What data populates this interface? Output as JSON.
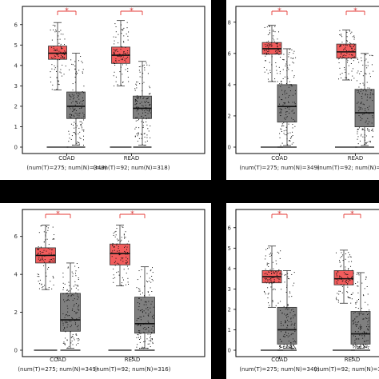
{
  "colors": {
    "tumor": "#f25c5c",
    "normal": "#7f7f7f",
    "sig": "#e53935",
    "frame": "#000000",
    "points": "#111111"
  },
  "chart_data": [
    {
      "type": "box",
      "ylim": [
        0,
        6.5
      ],
      "yticks": [
        0,
        1,
        2,
        3,
        4,
        5,
        6
      ],
      "significance_mark": "*",
      "groups": [
        {
          "name": "COAD",
          "sublabel": "(num(T)=275; num(N)=349)",
          "tumor": {
            "min": 2.8,
            "q1": 4.3,
            "median": 4.6,
            "q3": 4.95,
            "max": 6.1
          },
          "normal": {
            "min": 0.1,
            "q1": 1.4,
            "median": 2.0,
            "q3": 2.7,
            "max": 4.6
          }
        },
        {
          "name": "READ",
          "sublabel": "(num(T)=92; num(N)=318)",
          "tumor": {
            "min": 3.0,
            "q1": 4.1,
            "median": 4.5,
            "q3": 4.9,
            "max": 6.2
          },
          "normal": {
            "min": 0.1,
            "q1": 1.4,
            "median": 1.9,
            "q3": 2.5,
            "max": 4.2
          }
        }
      ]
    },
    {
      "type": "box",
      "ylim": [
        0,
        8.5
      ],
      "yticks": [
        0,
        2,
        4,
        6,
        8
      ],
      "significance_mark": "*",
      "groups": [
        {
          "name": "COAD",
          "sublabel": "(num(T)=275; num(N)=349)",
          "tumor": {
            "min": 4.2,
            "q1": 5.95,
            "median": 6.3,
            "q3": 6.7,
            "max": 7.8
          },
          "normal": {
            "min": 0.1,
            "q1": 1.6,
            "median": 2.6,
            "q3": 4.0,
            "max": 6.3
          }
        },
        {
          "name": "READ",
          "sublabel": "(num(T)=92; num(N)=318)",
          "tumor": {
            "min": 4.3,
            "q1": 5.7,
            "median": 6.1,
            "q3": 6.6,
            "max": 7.5
          },
          "normal": {
            "min": 0.1,
            "q1": 1.3,
            "median": 2.2,
            "q3": 3.7,
            "max": 6.0
          }
        }
      ]
    },
    {
      "type": "box",
      "ylim": [
        0,
        7
      ],
      "yticks": [
        0,
        2,
        4,
        6
      ],
      "significance_mark": "*",
      "groups": [
        {
          "name": "COAD",
          "sublabel": "(num(T)=275; num(N)=349)",
          "tumor": {
            "min": 3.2,
            "q1": 4.6,
            "median": 5.0,
            "q3": 5.4,
            "max": 6.6
          },
          "normal": {
            "min": 0.1,
            "q1": 1.0,
            "median": 1.6,
            "q3": 3.0,
            "max": 4.6
          }
        },
        {
          "name": "READ",
          "sublabel": "(num(T)=92; num(N)=316)",
          "tumor": {
            "min": 3.4,
            "q1": 4.5,
            "median": 5.1,
            "q3": 5.6,
            "max": 6.6
          },
          "normal": {
            "min": 0.1,
            "q1": 0.9,
            "median": 1.4,
            "q3": 2.8,
            "max": 4.4
          }
        }
      ]
    },
    {
      "type": "box",
      "ylim": [
        0,
        6.5
      ],
      "yticks": [
        0,
        1,
        2,
        3,
        4,
        5,
        6
      ],
      "significance_mark": "*",
      "groups": [
        {
          "name": "COAD",
          "sublabel": "(num(T)=275; num(N)=349)",
          "tumor": {
            "min": 2.1,
            "q1": 3.3,
            "median": 3.6,
            "q3": 3.9,
            "max": 5.1
          },
          "normal": {
            "min": 0.1,
            "q1": 0.3,
            "median": 1.0,
            "q3": 2.1,
            "max": 3.9
          }
        },
        {
          "name": "READ",
          "sublabel": "(num(T)=92; num(N)=318)",
          "tumor": {
            "min": 2.3,
            "q1": 3.2,
            "median": 3.5,
            "q3": 3.9,
            "max": 4.9
          },
          "normal": {
            "min": 0.1,
            "q1": 0.3,
            "median": 0.8,
            "q3": 1.9,
            "max": 3.8
          }
        }
      ]
    }
  ]
}
